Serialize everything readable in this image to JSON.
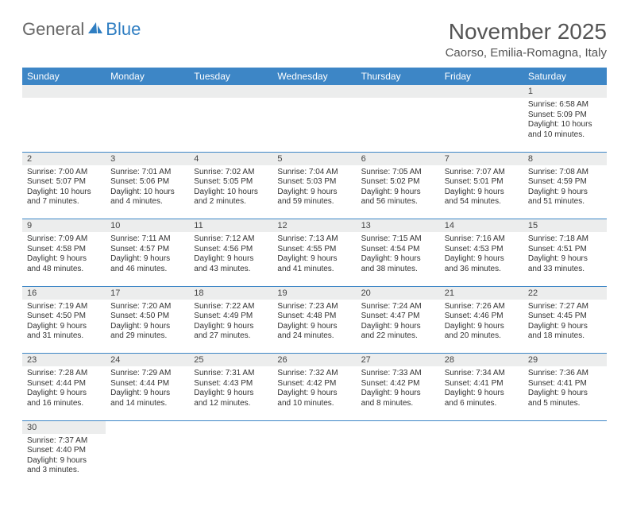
{
  "logo": {
    "text1": "General",
    "text2": "Blue",
    "icon_color": "#2f7ec2"
  },
  "title": "November 2025",
  "location": "Caorso, Emilia-Romagna, Italy",
  "colors": {
    "header_bg": "#3d86c6",
    "header_fg": "#ffffff",
    "daynum_bg": "#eceded",
    "border": "#3d86c6",
    "text": "#333333"
  },
  "day_headers": [
    "Sunday",
    "Monday",
    "Tuesday",
    "Wednesday",
    "Thursday",
    "Friday",
    "Saturday"
  ],
  "weeks": [
    [
      null,
      null,
      null,
      null,
      null,
      null,
      {
        "n": "1",
        "sunrise": "Sunrise: 6:58 AM",
        "sunset": "Sunset: 5:09 PM",
        "daylight": "Daylight: 10 hours and 10 minutes."
      }
    ],
    [
      {
        "n": "2",
        "sunrise": "Sunrise: 7:00 AM",
        "sunset": "Sunset: 5:07 PM",
        "daylight": "Daylight: 10 hours and 7 minutes."
      },
      {
        "n": "3",
        "sunrise": "Sunrise: 7:01 AM",
        "sunset": "Sunset: 5:06 PM",
        "daylight": "Daylight: 10 hours and 4 minutes."
      },
      {
        "n": "4",
        "sunrise": "Sunrise: 7:02 AM",
        "sunset": "Sunset: 5:05 PM",
        "daylight": "Daylight: 10 hours and 2 minutes."
      },
      {
        "n": "5",
        "sunrise": "Sunrise: 7:04 AM",
        "sunset": "Sunset: 5:03 PM",
        "daylight": "Daylight: 9 hours and 59 minutes."
      },
      {
        "n": "6",
        "sunrise": "Sunrise: 7:05 AM",
        "sunset": "Sunset: 5:02 PM",
        "daylight": "Daylight: 9 hours and 56 minutes."
      },
      {
        "n": "7",
        "sunrise": "Sunrise: 7:07 AM",
        "sunset": "Sunset: 5:01 PM",
        "daylight": "Daylight: 9 hours and 54 minutes."
      },
      {
        "n": "8",
        "sunrise": "Sunrise: 7:08 AM",
        "sunset": "Sunset: 4:59 PM",
        "daylight": "Daylight: 9 hours and 51 minutes."
      }
    ],
    [
      {
        "n": "9",
        "sunrise": "Sunrise: 7:09 AM",
        "sunset": "Sunset: 4:58 PM",
        "daylight": "Daylight: 9 hours and 48 minutes."
      },
      {
        "n": "10",
        "sunrise": "Sunrise: 7:11 AM",
        "sunset": "Sunset: 4:57 PM",
        "daylight": "Daylight: 9 hours and 46 minutes."
      },
      {
        "n": "11",
        "sunrise": "Sunrise: 7:12 AM",
        "sunset": "Sunset: 4:56 PM",
        "daylight": "Daylight: 9 hours and 43 minutes."
      },
      {
        "n": "12",
        "sunrise": "Sunrise: 7:13 AM",
        "sunset": "Sunset: 4:55 PM",
        "daylight": "Daylight: 9 hours and 41 minutes."
      },
      {
        "n": "13",
        "sunrise": "Sunrise: 7:15 AM",
        "sunset": "Sunset: 4:54 PM",
        "daylight": "Daylight: 9 hours and 38 minutes."
      },
      {
        "n": "14",
        "sunrise": "Sunrise: 7:16 AM",
        "sunset": "Sunset: 4:53 PM",
        "daylight": "Daylight: 9 hours and 36 minutes."
      },
      {
        "n": "15",
        "sunrise": "Sunrise: 7:18 AM",
        "sunset": "Sunset: 4:51 PM",
        "daylight": "Daylight: 9 hours and 33 minutes."
      }
    ],
    [
      {
        "n": "16",
        "sunrise": "Sunrise: 7:19 AM",
        "sunset": "Sunset: 4:50 PM",
        "daylight": "Daylight: 9 hours and 31 minutes."
      },
      {
        "n": "17",
        "sunrise": "Sunrise: 7:20 AM",
        "sunset": "Sunset: 4:50 PM",
        "daylight": "Daylight: 9 hours and 29 minutes."
      },
      {
        "n": "18",
        "sunrise": "Sunrise: 7:22 AM",
        "sunset": "Sunset: 4:49 PM",
        "daylight": "Daylight: 9 hours and 27 minutes."
      },
      {
        "n": "19",
        "sunrise": "Sunrise: 7:23 AM",
        "sunset": "Sunset: 4:48 PM",
        "daylight": "Daylight: 9 hours and 24 minutes."
      },
      {
        "n": "20",
        "sunrise": "Sunrise: 7:24 AM",
        "sunset": "Sunset: 4:47 PM",
        "daylight": "Daylight: 9 hours and 22 minutes."
      },
      {
        "n": "21",
        "sunrise": "Sunrise: 7:26 AM",
        "sunset": "Sunset: 4:46 PM",
        "daylight": "Daylight: 9 hours and 20 minutes."
      },
      {
        "n": "22",
        "sunrise": "Sunrise: 7:27 AM",
        "sunset": "Sunset: 4:45 PM",
        "daylight": "Daylight: 9 hours and 18 minutes."
      }
    ],
    [
      {
        "n": "23",
        "sunrise": "Sunrise: 7:28 AM",
        "sunset": "Sunset: 4:44 PM",
        "daylight": "Daylight: 9 hours and 16 minutes."
      },
      {
        "n": "24",
        "sunrise": "Sunrise: 7:29 AM",
        "sunset": "Sunset: 4:44 PM",
        "daylight": "Daylight: 9 hours and 14 minutes."
      },
      {
        "n": "25",
        "sunrise": "Sunrise: 7:31 AM",
        "sunset": "Sunset: 4:43 PM",
        "daylight": "Daylight: 9 hours and 12 minutes."
      },
      {
        "n": "26",
        "sunrise": "Sunrise: 7:32 AM",
        "sunset": "Sunset: 4:42 PM",
        "daylight": "Daylight: 9 hours and 10 minutes."
      },
      {
        "n": "27",
        "sunrise": "Sunrise: 7:33 AM",
        "sunset": "Sunset: 4:42 PM",
        "daylight": "Daylight: 9 hours and 8 minutes."
      },
      {
        "n": "28",
        "sunrise": "Sunrise: 7:34 AM",
        "sunset": "Sunset: 4:41 PM",
        "daylight": "Daylight: 9 hours and 6 minutes."
      },
      {
        "n": "29",
        "sunrise": "Sunrise: 7:36 AM",
        "sunset": "Sunset: 4:41 PM",
        "daylight": "Daylight: 9 hours and 5 minutes."
      }
    ],
    [
      {
        "n": "30",
        "sunrise": "Sunrise: 7:37 AM",
        "sunset": "Sunset: 4:40 PM",
        "daylight": "Daylight: 9 hours and 3 minutes."
      },
      null,
      null,
      null,
      null,
      null,
      null
    ]
  ]
}
